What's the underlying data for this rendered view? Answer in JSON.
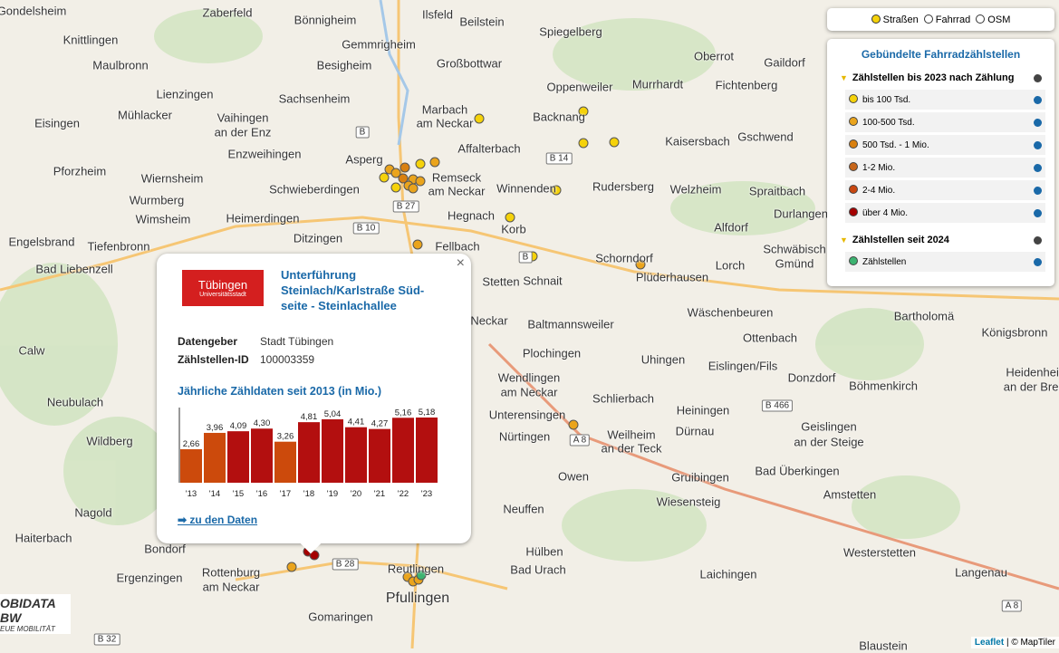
{
  "map": {
    "places": [
      "Gondelsheim",
      "Zaberfeld",
      "Bönnigheim",
      "Ilsfeld",
      "Beilstein",
      "Knittlingen",
      "Gemmrigheim",
      "Spiegelberg",
      "Maulbronn",
      "Besigheim",
      "Großbottwar",
      "Oberrot",
      "Gaildorf",
      "Lienzingen",
      "Sachsenheim",
      "Oppenweiler",
      "Murrhardt",
      "Fichtenberg",
      "Mühlacker",
      "Vaihingen",
      "an der Enz",
      "Marbach",
      "am Neckar",
      "Backnang",
      "Eisingen",
      "Enzweihingen",
      "Affalterbach",
      "Kaisersbach",
      "Gschwend",
      "Pforzheim",
      "Wiernsheim",
      "Asperg",
      "Remseck",
      "am Neckar",
      "Schwieberdingen",
      "Winnenden",
      "Rudersberg",
      "Welzheim",
      "Spraitbach",
      "Wurmberg",
      "Hegnach",
      "Wimsheim",
      "Heimerdingen",
      "Korb",
      "Durlangen",
      "Alfdorf",
      "Engelsbrand",
      "Tiefenbronn",
      "Ditzingen",
      "Fellbach",
      "Schwäbisch",
      "Gmünd",
      "Bad Liebenzell",
      "Schnait",
      "Stetten",
      "Schorndorf",
      "Plüderhausen",
      "Lorch",
      "Calw",
      "Neckar",
      "Baltmannsweiler",
      "Wäschenbeuren",
      "Bartholomä",
      "Königsbronn",
      "Ottenbach",
      "Plochingen",
      "Uhingen",
      "Eislingen/Fils",
      "Donzdorf",
      "Heidenheim",
      "an der Brenz",
      "Wendlingen",
      "am Neckar",
      "Schlierbach",
      "Böhmenkirch",
      "Neubulach",
      "Heiningen",
      "Dürnau",
      "Weilheim",
      "an der Teck",
      "Geislingen",
      "an der Steige",
      "Unterensingen",
      "Wildberg",
      "Nürtingen",
      "Gruibingen",
      "Bad Überkingen",
      "Owen",
      "Nagold",
      "Wiesensteig",
      "Amstetten",
      "Neuffen",
      "Haiterbach",
      "Bondorf",
      "Hülben",
      "Westerstetten",
      "Rottenburg",
      "am Neckar",
      "Ergenzingen",
      "Bad Urach",
      "Laichingen",
      "Langenau",
      "Reutlingen",
      "Pfullingen",
      "Gomaringen",
      "Blaustein"
    ],
    "roads": [
      "B 27",
      "B 10",
      "B 14",
      "B 28",
      "B 466",
      "A 8",
      "B 32",
      "A 8",
      "B",
      "B"
    ],
    "attribution": {
      "leaflet": "Leaflet",
      "rest": "| © MapTiler"
    },
    "logo": {
      "name": "OBIDATA BW",
      "sub": "EUE MOBILITÄT"
    }
  },
  "layers": [
    "Straßen",
    "Fahrrad",
    "OSM"
  ],
  "legend": {
    "title": "Gebündelte Fahrradzählstellen",
    "groups": [
      {
        "name": "Zählstellen bis 2023 nach Zählung",
        "items": [
          "bis 100 Tsd.",
          "100-500 Tsd.",
          "500 Tsd. - 1 Mio.",
          "1-2 Mio.",
          "2-4 Mio.",
          "über 4 Mio."
        ]
      },
      {
        "name": "Zählstellen seit 2024",
        "items": [
          "Zählstellen"
        ]
      }
    ]
  },
  "popup": {
    "logo": {
      "name": "Tübingen",
      "sub": "Universitätsstadt"
    },
    "title_lines": [
      "Unterführung",
      "Steinlach/Karlstraße Süd-",
      "seite - Steinlachallee"
    ],
    "rows": [
      [
        "Datengeber",
        "Stadt Tübingen"
      ],
      [
        "Zählstellen-ID",
        "100003359"
      ]
    ],
    "link": "➡ zu den Daten",
    "close": "×"
  },
  "chart_data": {
    "type": "bar",
    "title": "Jährliche Zähldaten seit 2013 (in Mio.)",
    "categories": [
      "'13",
      "'14",
      "'15",
      "'16",
      "'17",
      "'18",
      "'19",
      "'20",
      "'21",
      "'22",
      "'23"
    ],
    "values": [
      2.66,
      3.96,
      4.09,
      4.3,
      3.26,
      4.81,
      5.04,
      4.41,
      4.27,
      5.16,
      5.18
    ],
    "value_labels": [
      "2,66",
      "3,96",
      "4,09",
      "4,30",
      "3,26",
      "4,81",
      "5,04",
      "4,41",
      "4,27",
      "5,16",
      "5,18"
    ],
    "colors": [
      "#cc4a0c",
      "#cc4a0c",
      "#b30f0f",
      "#b30f0f",
      "#cc4a0c",
      "#b30f0f",
      "#b30f0f",
      "#b30f0f",
      "#b30f0f",
      "#b30f0f",
      "#b30f0f"
    ]
  }
}
